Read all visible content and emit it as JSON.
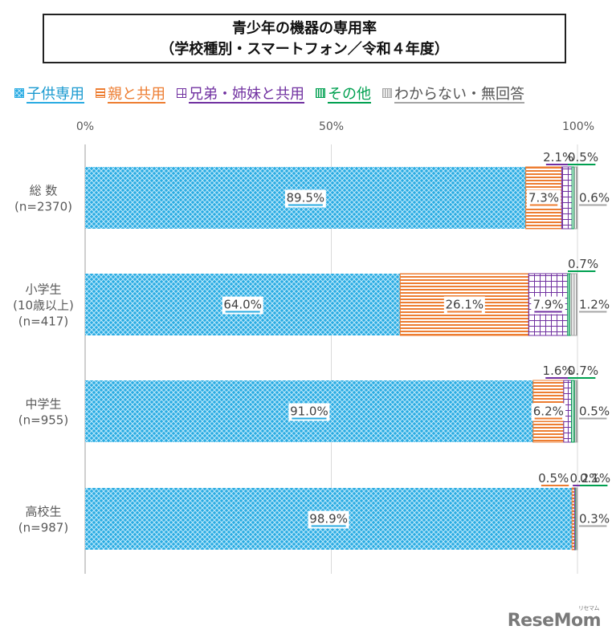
{
  "title": {
    "line1": "青少年の機器の専用率",
    "line2": "（学校種別・スマートフォン／令和４年度）"
  },
  "watermark": {
    "text": "ReseMom",
    "kana": "リセマム"
  },
  "chart_data": {
    "type": "bar",
    "orientation": "horizontal",
    "stacked": true,
    "title": "青少年の機器の専用率（学校種別・スマートフォン／令和４年度）",
    "xlabel": "",
    "ylabel": "",
    "xlim": [
      0,
      100
    ],
    "x_ticks": [
      "0%",
      "50%",
      "100%"
    ],
    "legend_position": "top",
    "categories": [
      {
        "line1": "総 数",
        "line2": "",
        "line3": "(n=2370)"
      },
      {
        "line1": "小学生",
        "line2": "(10歳以上)",
        "line3": "(n=417)"
      },
      {
        "line1": "中学生",
        "line2": "",
        "line3": "(n=955)"
      },
      {
        "line1": "高校生",
        "line2": "",
        "line3": "(n=987)"
      }
    ],
    "series": [
      {
        "name": "子供専用",
        "color": "#29abe2",
        "pattern": "diamond-grid",
        "values": [
          89.5,
          64.0,
          91.0,
          98.9
        ]
      },
      {
        "name": "親と共用",
        "color": "#ed7d31",
        "pattern": "horizontal-lines",
        "values": [
          7.3,
          26.1,
          6.2,
          0.5
        ]
      },
      {
        "name": "兄弟・姉妹と共用",
        "color": "#7030a0",
        "pattern": "grid",
        "values": [
          2.1,
          7.9,
          1.6,
          0.2
        ]
      },
      {
        "name": "その他",
        "color": "#00a050",
        "pattern": "vertical-lines",
        "values": [
          0.5,
          0.7,
          0.7,
          0.1
        ]
      },
      {
        "name": "わからない・無回答",
        "color": "#a5a5a5",
        "pattern": "vertical-lines",
        "values": [
          0.6,
          1.2,
          0.5,
          0.3
        ]
      }
    ],
    "data_labels": [
      [
        "89.5%",
        "7.3%",
        "2.1%",
        "0.5%",
        "0.6%"
      ],
      [
        "64.0%",
        "26.1%",
        "7.9%",
        "0.7%",
        "1.2%"
      ],
      [
        "91.0%",
        "6.2%",
        "1.6%",
        "0.7%",
        "0.5%"
      ],
      [
        "98.9%",
        "0.5%",
        "0.2%",
        "0.1%",
        "0.3%"
      ]
    ]
  }
}
